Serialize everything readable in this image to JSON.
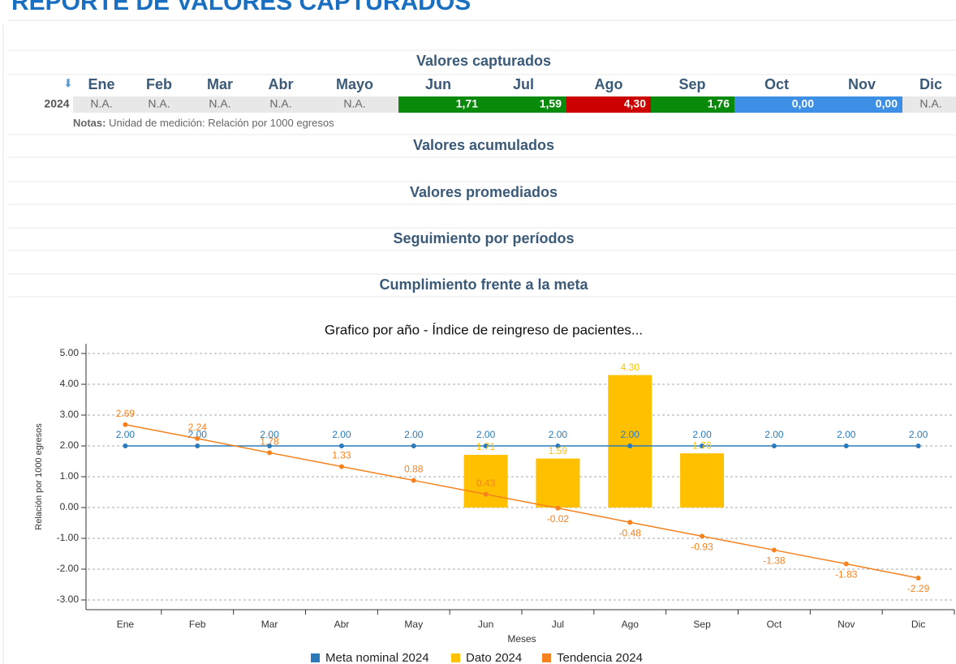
{
  "header": {
    "title": "REPORTE DE VALORES CAPTURADOS"
  },
  "sections": [
    "Valores capturados",
    "Valores acumulados",
    "Valores promediados",
    "Seguimiento por períodos",
    "Cumplimiento frente a la meta"
  ],
  "table": {
    "columns": [
      "Ene",
      "Feb",
      "Mar",
      "Abr",
      "Mayo",
      "Jun",
      "Jul",
      "Ago",
      "Sep",
      "Oct",
      "Nov",
      "Dic"
    ],
    "rows": [
      {
        "year": "2024",
        "cells": [
          {
            "text": "N.A.",
            "color": "#e8e8e8"
          },
          {
            "text": "N.A.",
            "color": "#e8e8e8"
          },
          {
            "text": "N.A.",
            "color": "#e8e8e8"
          },
          {
            "text": "N.A.",
            "color": "#e8e8e8"
          },
          {
            "text": "N.A.",
            "color": "#e8e8e8"
          },
          {
            "text": "1,71",
            "color": "#0a8a0a"
          },
          {
            "text": "1,59",
            "color": "#0a8a0a"
          },
          {
            "text": "4,30",
            "color": "#cc0000"
          },
          {
            "text": "1,76",
            "color": "#0a8a0a"
          },
          {
            "text": "0,00",
            "color": "#3d8fe6"
          },
          {
            "text": "0,00",
            "color": "#3d8fe6"
          },
          {
            "text": "N.A.",
            "color": "#e8e8e8"
          }
        ]
      }
    ],
    "notes_label": "Notas:",
    "notes": "Unidad de medición: Relación por 1000 egresos"
  },
  "chart_data": {
    "type": "bar-line",
    "title": "Grafico por año - Índice de reingreso de pacientes...",
    "x_label": "Meses",
    "y_label": "Relación por 1000 egresos",
    "categories": [
      "Ene",
      "Feb",
      "Mar",
      "Abr",
      "May",
      "Jun",
      "Jul",
      "Ago",
      "Sep",
      "Oct",
      "Nov",
      "Dic"
    ],
    "series": [
      {
        "name": "Meta nominal 2024",
        "color": "#2b7bba",
        "kind": "line",
        "values": [
          2,
          2,
          2,
          2,
          2,
          2,
          2,
          2,
          2,
          2,
          2,
          2
        ],
        "value_labels": [
          "2.00",
          "2.00",
          "2.00",
          "2.00",
          "2.00",
          "2.00",
          "2.00",
          "2.00",
          "2.00",
          "2.00",
          "2.00",
          "2.00"
        ]
      },
      {
        "name": "Dato 2024",
        "color": "#ffc000",
        "kind": "bar",
        "values": [
          null,
          null,
          null,
          null,
          null,
          1.71,
          1.59,
          4.3,
          1.76,
          null,
          null,
          null
        ],
        "value_labels": [
          null,
          null,
          null,
          null,
          null,
          "1.71",
          "1.59",
          "4.30",
          "1.76",
          null,
          null,
          null
        ]
      },
      {
        "name": "Tendencia 2024",
        "color": "#f5821f",
        "kind": "line",
        "values": [
          2.69,
          2.24,
          1.78,
          1.33,
          0.88,
          0.43,
          -0.02,
          -0.48,
          -0.93,
          -1.38,
          -1.83,
          -2.29
        ],
        "value_labels": [
          "2.69",
          "2.24",
          "1.78",
          "1.33",
          "0.88",
          "0.43",
          "-0.02",
          "-0.48",
          "-0.93",
          "-1.38",
          "-1.83",
          "-2.29"
        ]
      }
    ],
    "ylim": [
      -3.3,
      5.2
    ],
    "yticks": [
      {
        "value": -3,
        "label": "-3.00"
      },
      {
        "value": -2,
        "label": "-2.00"
      },
      {
        "value": -1,
        "label": "-1.00"
      },
      {
        "value": 0,
        "label": "0.00"
      },
      {
        "value": 1,
        "label": "1.00"
      },
      {
        "value": 2,
        "label": "2.00"
      },
      {
        "value": 3,
        "label": "3.00"
      },
      {
        "value": 4,
        "label": "4.00"
      },
      {
        "value": 5,
        "label": "5.00"
      }
    ],
    "grid": true
  }
}
